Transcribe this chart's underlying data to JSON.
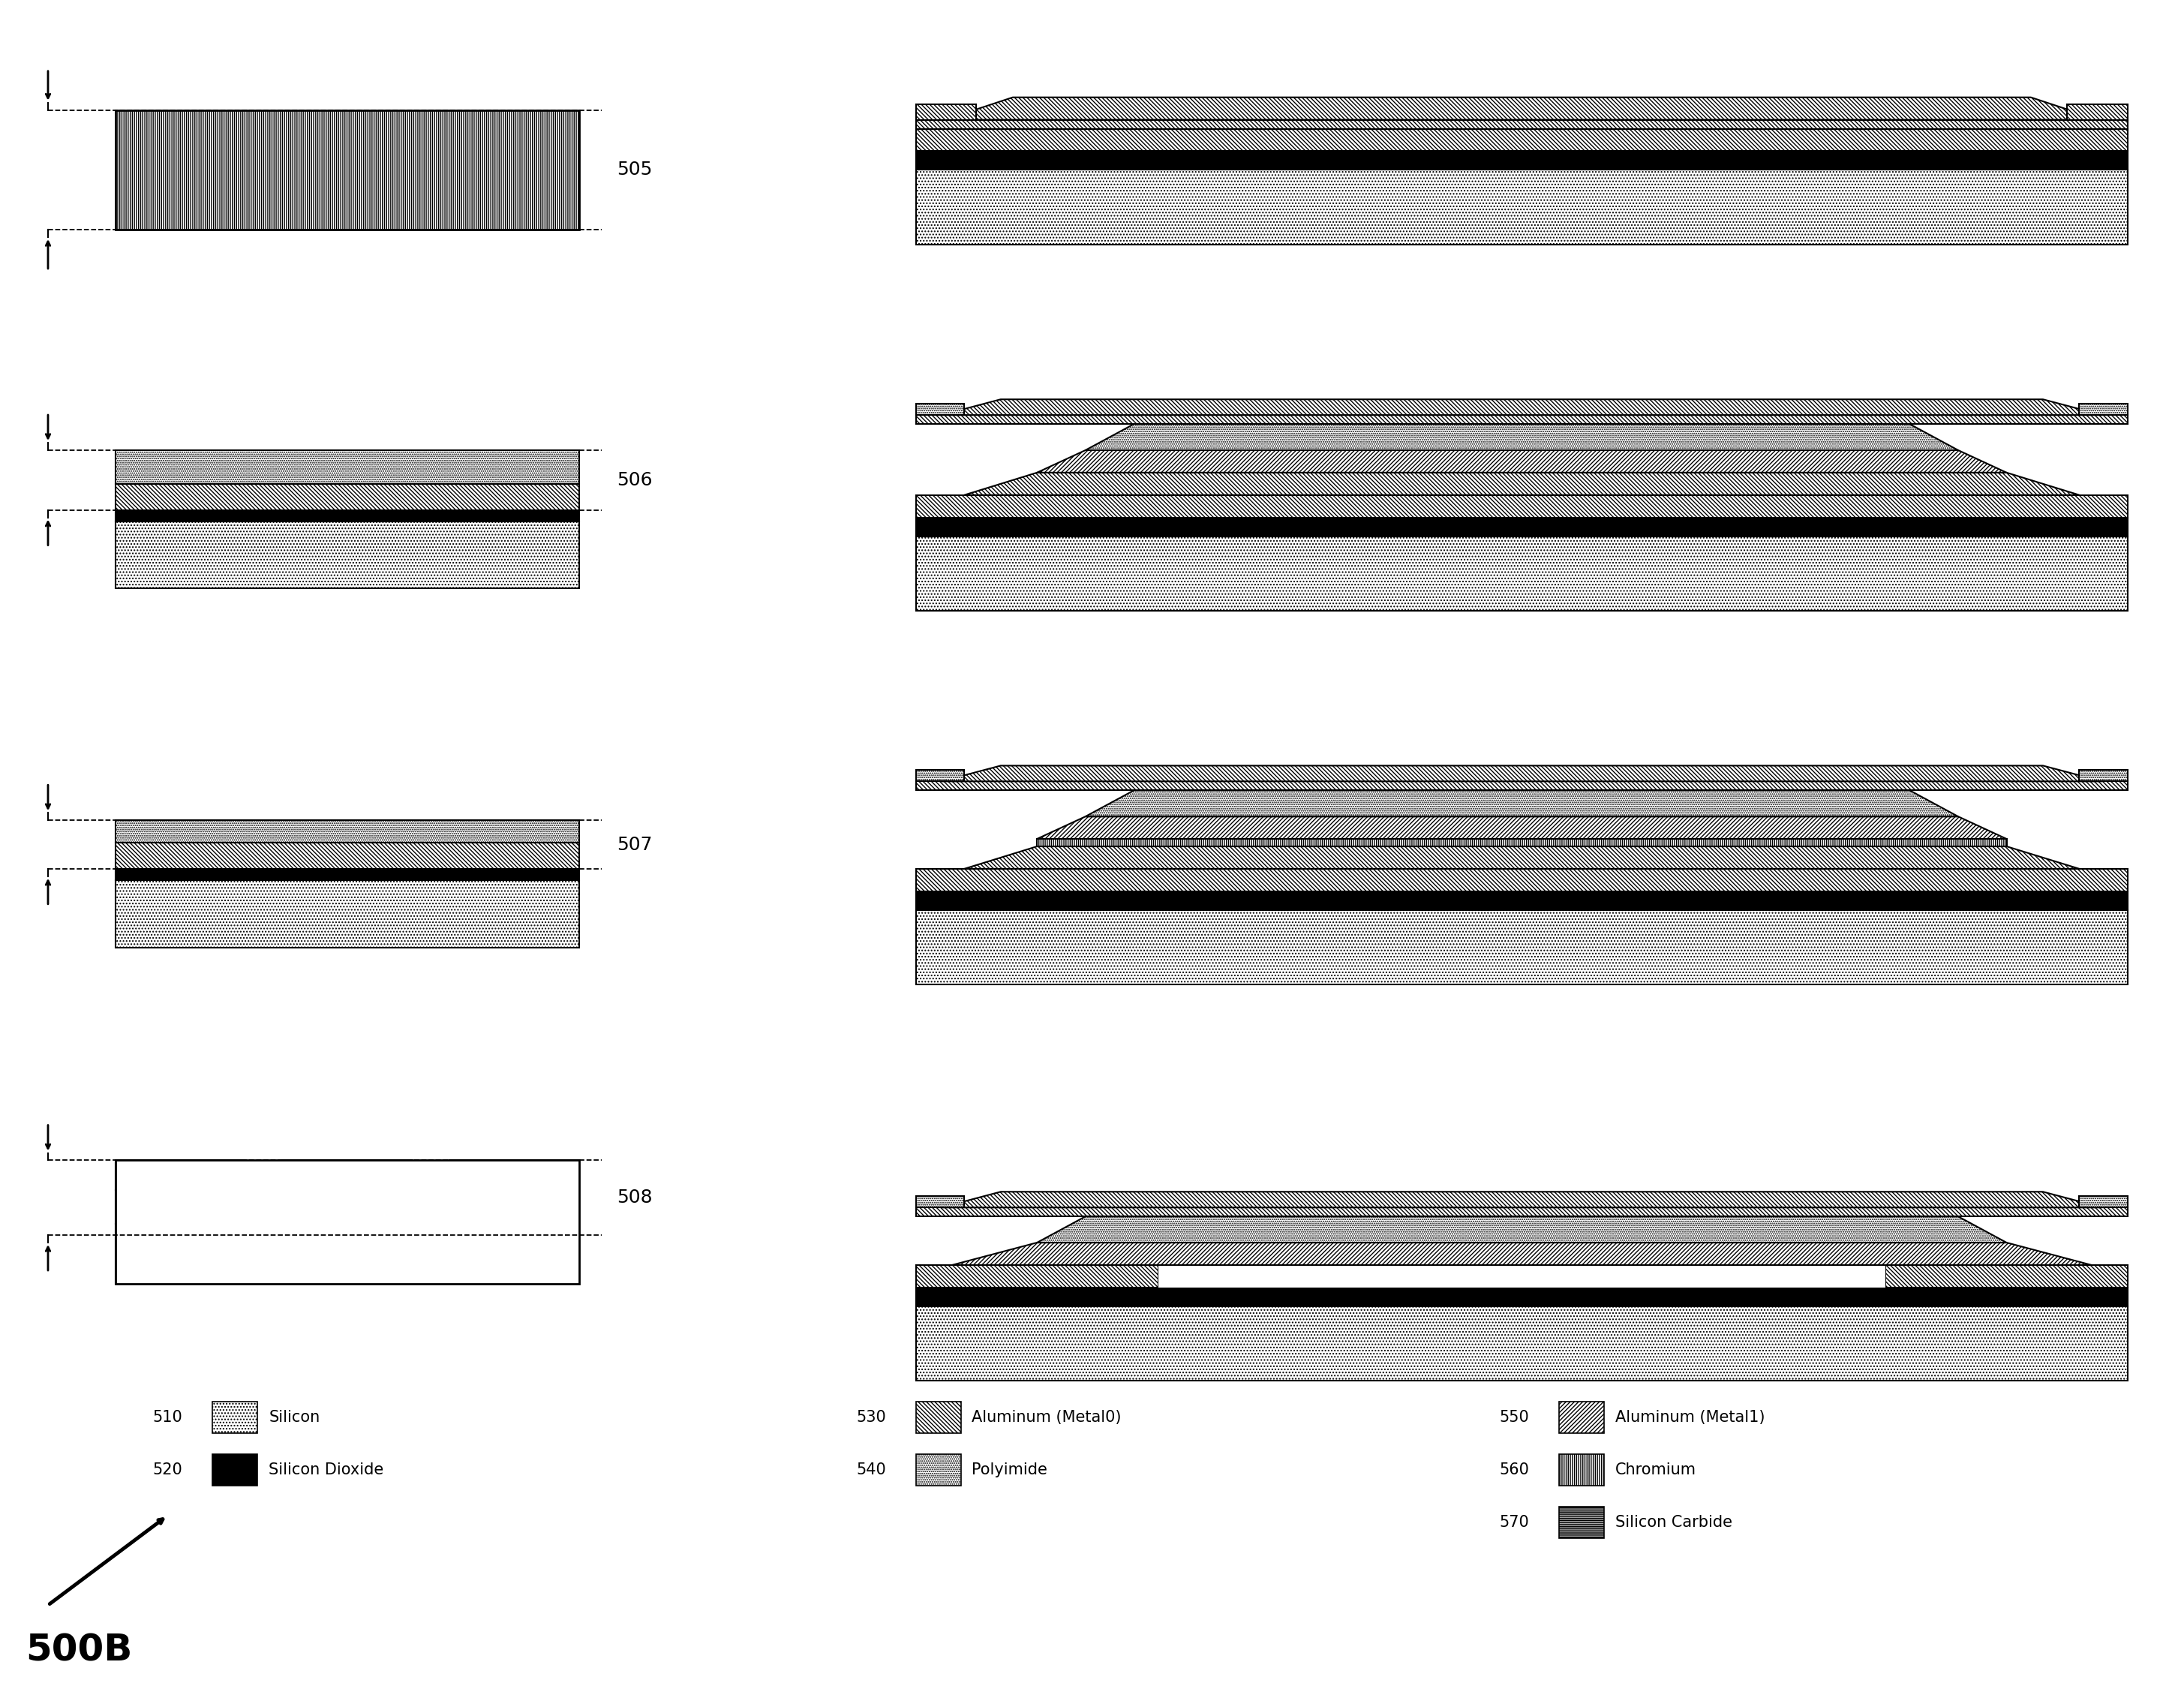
{
  "figure_label": "500B",
  "step_labels": [
    "505",
    "506",
    "507",
    "508"
  ],
  "legend_items": [
    {
      "id": "510",
      "name": "Silicon",
      "hatch": "...."
    },
    {
      "id": "520",
      "name": "Silicon Dioxide",
      "hatch": "",
      "facecolor": "#000000"
    },
    {
      "id": "530",
      "name": "Aluminum (Metal0)",
      "hatch": "\\\\\\\\\\\\"
    },
    {
      "id": "540",
      "name": "Polyimide",
      "hatch": "......"
    },
    {
      "id": "550",
      "name": "Aluminum (Metal1)",
      "hatch": "//////"
    },
    {
      "id": "560",
      "name": "Chromium",
      "hatch": "||||||"
    },
    {
      "id": "570",
      "name": "Silicon Carbide",
      "hatch": "------"
    }
  ],
  "background_color": "#ffffff"
}
